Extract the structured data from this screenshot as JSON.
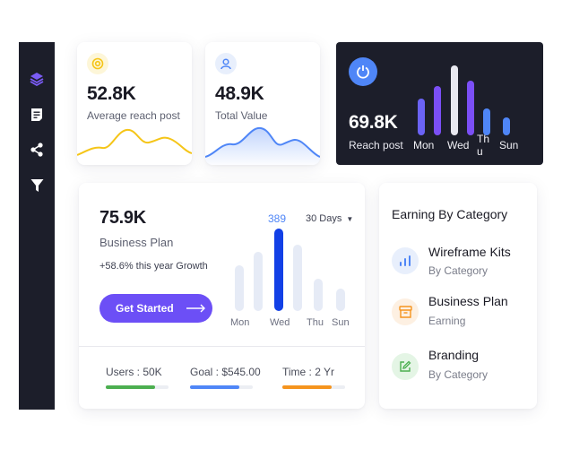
{
  "sidebar": {
    "items": [
      {
        "icon": "layers-icon",
        "active": true
      },
      {
        "icon": "document-icon",
        "active": false
      },
      {
        "icon": "share-icon",
        "active": false
      },
      {
        "icon": "filter-icon",
        "active": false
      }
    ]
  },
  "cards": {
    "average_reach": {
      "value": "52.8K",
      "label": "Average reach post",
      "icon": "target-icon",
      "color": "#f5c518"
    },
    "total_value": {
      "value": "48.9K",
      "label": "Total Value",
      "icon": "user-icon",
      "color": "#4f86f7"
    },
    "reach_post": {
      "value": "69.8K",
      "label": "Reach post",
      "icon": "power-icon",
      "days": [
        "Mon",
        "Wed",
        "Th\nu",
        "Sun"
      ],
      "bars": [
        {
          "level": 0.52,
          "color": "#6b63f6"
        },
        {
          "level": 0.7,
          "color": "#7b4ff6"
        },
        {
          "level": 1.0,
          "color": "#e8e8f0"
        },
        {
          "level": 0.78,
          "color": "#7b4ff6"
        },
        {
          "level": 0.38,
          "color": "#4f86f7"
        },
        {
          "level": 0.25,
          "color": "#4f86f7"
        }
      ]
    }
  },
  "business": {
    "value": "75.9K",
    "title": "Business Plan",
    "growth": "+58.6% this year Growth",
    "cta": "Get Started",
    "period": "30 Days",
    "peak_value": "389",
    "days": [
      "Mon",
      "Wed",
      "Thu",
      "Sun"
    ],
    "bars": [
      0.55,
      0.72,
      1.0,
      0.8,
      0.39,
      0.27
    ],
    "highlight_index": 2,
    "highlight_color": "#1240e6",
    "stats": [
      {
        "label": "Users : 50K",
        "progress": 0.78,
        "color": "#4caf50"
      },
      {
        "label": "Goal : $545.00",
        "progress": 0.78,
        "color": "#4f86f7"
      },
      {
        "label": "Time : 2 Yr",
        "progress": 0.78,
        "color": "#f5941e"
      }
    ]
  },
  "earning": {
    "title": "Earning By Category",
    "items": [
      {
        "title": "Wireframe Kits",
        "sub": "By Category",
        "icon": "bar-chart-icon",
        "color": "#4f86f7",
        "bg": "#e8effc"
      },
      {
        "title": "Business Plan",
        "sub": "Earning",
        "icon": "archive-icon",
        "color": "#f5941e",
        "bg": "#fdf0e2"
      },
      {
        "title": "Branding",
        "sub": "By Category",
        "icon": "edit-icon",
        "color": "#4caf50",
        "bg": "#e4f5e5"
      }
    ]
  }
}
